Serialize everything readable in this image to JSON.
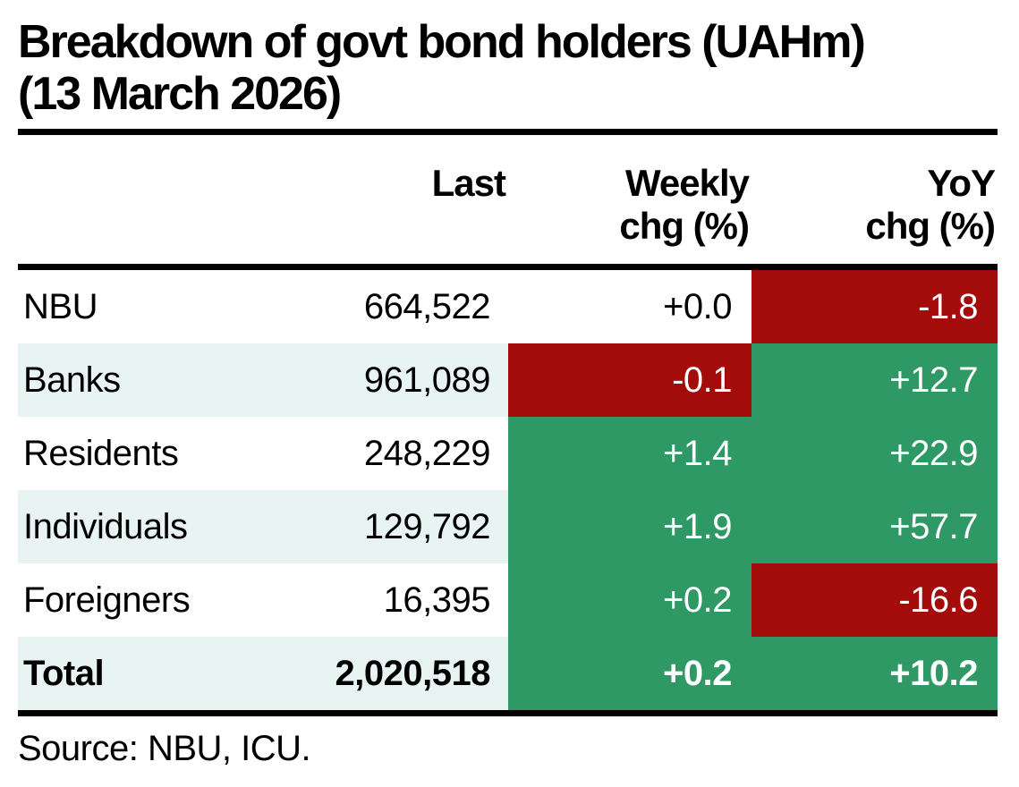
{
  "title": {
    "line1": "Breakdown of govt bond holders (UAHm)",
    "line2": "(13 March 2026)"
  },
  "table": {
    "headers": [
      {
        "line1": "",
        "line2": ""
      },
      {
        "line1": "Last",
        "line2": ""
      },
      {
        "line1": "Weekly",
        "line2": "chg (%)"
      },
      {
        "line1": "YoY",
        "line2": "chg (%)"
      }
    ],
    "rows": [
      {
        "label": "NBU",
        "last": "664,522",
        "weekly": {
          "value": "+0.0",
          "sentiment": "neutral"
        },
        "yoy": {
          "value": "-1.8",
          "sentiment": "negative"
        }
      },
      {
        "label": "Banks",
        "last": "961,089",
        "weekly": {
          "value": "-0.1",
          "sentiment": "negative"
        },
        "yoy": {
          "value": "+12.7",
          "sentiment": "positive"
        }
      },
      {
        "label": "Residents",
        "last": "248,229",
        "weekly": {
          "value": "+1.4",
          "sentiment": "positive"
        },
        "yoy": {
          "value": "+22.9",
          "sentiment": "positive"
        }
      },
      {
        "label": "Individuals",
        "last": "129,792",
        "weekly": {
          "value": "+1.9",
          "sentiment": "positive"
        },
        "yoy": {
          "value": "+57.7",
          "sentiment": "positive"
        }
      },
      {
        "label": "Foreigners",
        "last": "16,395",
        "weekly": {
          "value": "+0.2",
          "sentiment": "positive"
        },
        "yoy": {
          "value": "-16.6",
          "sentiment": "negative"
        }
      },
      {
        "label": "Total",
        "last": "2,020,518",
        "weekly": {
          "value": "+0.2",
          "sentiment": "positive"
        },
        "yoy": {
          "value": "+10.2",
          "sentiment": "positive"
        }
      }
    ]
  },
  "source": "Source: NBU, ICU.",
  "colors": {
    "positive_bg": "#2F9966",
    "negative_bg": "#A40B0B",
    "stripe_bg": "#E8F4F2",
    "text_on_color": "#FFFFFF",
    "rule": "#000000"
  },
  "chart_data": {
    "type": "table",
    "title": "Breakdown of govt bond holders (UAHm) (13 March 2026)",
    "categories": [
      "NBU",
      "Banks",
      "Residents",
      "Individuals",
      "Foreigners",
      "Total"
    ],
    "series": [
      {
        "name": "Last",
        "values": [
          664522,
          961089,
          248229,
          129792,
          16395,
          2020518
        ]
      },
      {
        "name": "Weekly chg (%)",
        "values": [
          0.0,
          -0.1,
          1.4,
          1.9,
          0.2,
          0.2
        ]
      },
      {
        "name": "YoY chg (%)",
        "values": [
          -1.8,
          12.7,
          22.9,
          57.7,
          -16.6,
          10.2
        ]
      }
    ],
    "notes": "Negative change cells highlighted dark red, positive change cells highlighted green; zero weekly change for NBU shown unhighlighted.",
    "source": "Source: NBU, ICU."
  }
}
